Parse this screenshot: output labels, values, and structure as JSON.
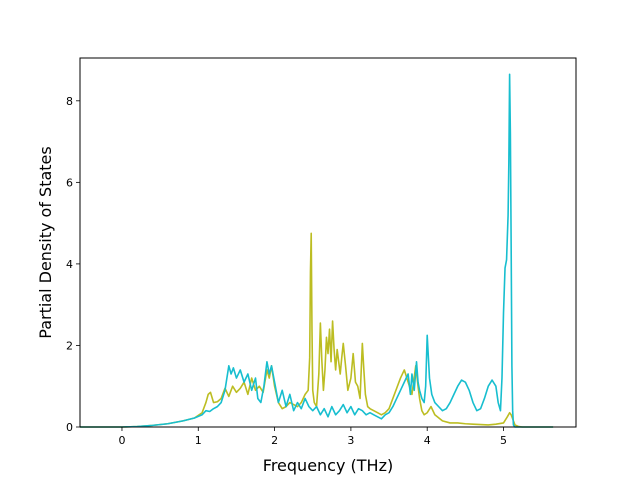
{
  "chart_data": {
    "type": "line",
    "title": "",
    "xlabel": "Frequency (THz)",
    "ylabel": "Partial Density of States",
    "xlim": [
      -0.55,
      5.95
    ],
    "ylim": [
      0,
      9.05
    ],
    "xticks": [
      0,
      1,
      2,
      3,
      4,
      5
    ],
    "yticks": [
      0,
      2,
      4,
      6,
      8
    ],
    "grid": false,
    "legend": "none",
    "series": [
      {
        "color": "#bcbd22",
        "x": [
          -0.55,
          0.0,
          0.2,
          0.4,
          0.6,
          0.8,
          0.95,
          1.05,
          1.1,
          1.13,
          1.16,
          1.2,
          1.25,
          1.3,
          1.35,
          1.4,
          1.45,
          1.5,
          1.55,
          1.6,
          1.65,
          1.7,
          1.75,
          1.8,
          1.85,
          1.9,
          1.93,
          1.96,
          2.0,
          2.05,
          2.1,
          2.15,
          2.2,
          2.25,
          2.3,
          2.35,
          2.4,
          2.44,
          2.46,
          2.47,
          2.48,
          2.49,
          2.5,
          2.52,
          2.55,
          2.58,
          2.6,
          2.62,
          2.64,
          2.66,
          2.68,
          2.7,
          2.72,
          2.74,
          2.76,
          2.78,
          2.8,
          2.82,
          2.84,
          2.86,
          2.88,
          2.9,
          2.93,
          2.96,
          3.0,
          3.03,
          3.06,
          3.09,
          3.12,
          3.15,
          3.17,
          3.19,
          3.22,
          3.25,
          3.3,
          3.35,
          3.4,
          3.45,
          3.5,
          3.55,
          3.6,
          3.65,
          3.7,
          3.75,
          3.8,
          3.85,
          3.88,
          3.9,
          3.93,
          3.96,
          4.0,
          4.05,
          4.1,
          4.2,
          4.3,
          4.4,
          4.5,
          4.6,
          4.7,
          4.8,
          4.9,
          5.0,
          5.05,
          5.08,
          5.1,
          5.15,
          5.2,
          5.25,
          5.3,
          5.4,
          5.5,
          5.65
        ],
        "y": [
          0,
          0,
          0.01,
          0.04,
          0.08,
          0.15,
          0.22,
          0.35,
          0.6,
          0.8,
          0.85,
          0.6,
          0.62,
          0.7,
          0.95,
          0.75,
          1.0,
          0.85,
          0.95,
          1.1,
          0.8,
          1.2,
          0.9,
          1.0,
          0.85,
          1.4,
          1.2,
          1.5,
          1.0,
          0.6,
          0.45,
          0.5,
          0.6,
          0.55,
          0.5,
          0.6,
          0.8,
          0.9,
          1.7,
          3.8,
          4.75,
          2.4,
          0.9,
          0.6,
          0.5,
          1.3,
          2.55,
          1.6,
          0.9,
          1.4,
          2.2,
          1.8,
          2.4,
          1.6,
          2.6,
          1.9,
          1.4,
          1.9,
          1.6,
          1.3,
          1.7,
          2.05,
          1.5,
          0.9,
          1.2,
          1.8,
          1.1,
          1.0,
          0.7,
          2.05,
          1.4,
          0.8,
          0.5,
          0.45,
          0.4,
          0.35,
          0.3,
          0.35,
          0.45,
          0.7,
          0.95,
          1.2,
          1.4,
          1.1,
          0.8,
          1.5,
          1.0,
          0.7,
          0.4,
          0.3,
          0.35,
          0.5,
          0.3,
          0.15,
          0.1,
          0.1,
          0.08,
          0.07,
          0.06,
          0.05,
          0.07,
          0.1,
          0.25,
          0.35,
          0.3,
          0.05,
          0.01,
          0,
          0,
          0,
          0,
          0
        ]
      },
      {
        "color": "#17becf",
        "x": [
          -0.55,
          0.0,
          0.2,
          0.4,
          0.6,
          0.8,
          0.95,
          1.05,
          1.1,
          1.15,
          1.2,
          1.25,
          1.3,
          1.35,
          1.4,
          1.43,
          1.46,
          1.5,
          1.55,
          1.6,
          1.65,
          1.7,
          1.75,
          1.78,
          1.82,
          1.86,
          1.9,
          1.93,
          1.96,
          2.0,
          2.05,
          2.1,
          2.15,
          2.2,
          2.25,
          2.3,
          2.35,
          2.4,
          2.45,
          2.5,
          2.55,
          2.6,
          2.65,
          2.7,
          2.75,
          2.8,
          2.85,
          2.9,
          2.95,
          3.0,
          3.05,
          3.1,
          3.15,
          3.2,
          3.25,
          3.3,
          3.35,
          3.4,
          3.45,
          3.5,
          3.55,
          3.6,
          3.65,
          3.7,
          3.75,
          3.78,
          3.8,
          3.83,
          3.86,
          3.88,
          3.9,
          3.93,
          3.96,
          3.98,
          4.0,
          4.03,
          4.06,
          4.1,
          4.15,
          4.2,
          4.25,
          4.3,
          4.35,
          4.4,
          4.45,
          4.5,
          4.55,
          4.6,
          4.65,
          4.7,
          4.75,
          4.8,
          4.85,
          4.9,
          4.93,
          4.96,
          4.98,
          5.0,
          5.02,
          5.04,
          5.06,
          5.07,
          5.08,
          5.09,
          5.1,
          5.11,
          5.12,
          5.13,
          5.15,
          5.2,
          5.3,
          5.4,
          5.5,
          5.65
        ],
        "y": [
          0,
          0,
          0.01,
          0.04,
          0.08,
          0.15,
          0.22,
          0.3,
          0.4,
          0.38,
          0.45,
          0.5,
          0.6,
          0.9,
          1.5,
          1.3,
          1.45,
          1.2,
          1.4,
          1.1,
          1.3,
          0.9,
          1.2,
          0.7,
          0.6,
          1.0,
          1.6,
          1.3,
          1.5,
          1.1,
          0.6,
          0.9,
          0.5,
          0.8,
          0.4,
          0.6,
          0.45,
          0.7,
          0.5,
          0.4,
          0.5,
          0.3,
          0.45,
          0.25,
          0.5,
          0.3,
          0.4,
          0.55,
          0.35,
          0.5,
          0.3,
          0.45,
          0.4,
          0.3,
          0.35,
          0.3,
          0.25,
          0.2,
          0.3,
          0.35,
          0.5,
          0.7,
          0.9,
          1.1,
          1.3,
          0.8,
          1.3,
          0.9,
          1.6,
          1.1,
          0.9,
          0.7,
          0.6,
          1.0,
          2.25,
          1.2,
          0.8,
          0.6,
          0.5,
          0.4,
          0.45,
          0.6,
          0.8,
          1.0,
          1.15,
          1.1,
          0.9,
          0.6,
          0.4,
          0.45,
          0.7,
          1.0,
          1.15,
          1.0,
          0.6,
          0.4,
          1.2,
          2.8,
          3.9,
          4.1,
          5.2,
          6.5,
          8.65,
          7.2,
          4.5,
          1.5,
          0.4,
          0.05,
          0,
          0,
          0,
          0,
          0,
          0
        ]
      }
    ]
  }
}
